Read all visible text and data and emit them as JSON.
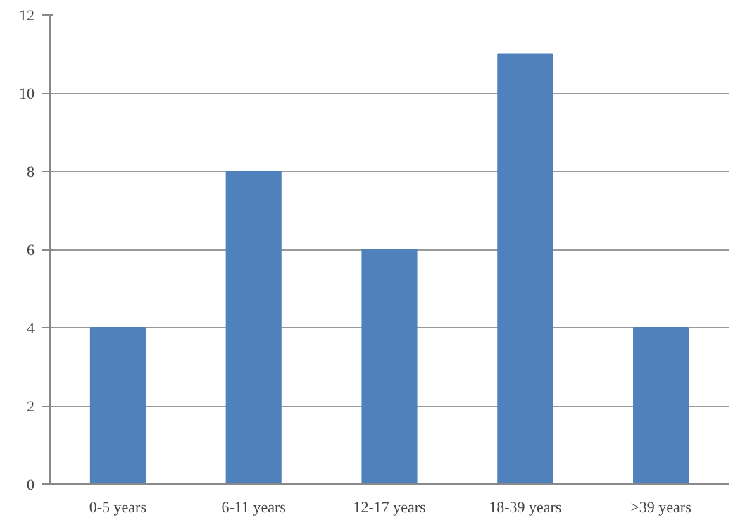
{
  "chart_data": {
    "type": "bar",
    "categories": [
      "0-5 years",
      "6-11 years",
      "12-17 years",
      "18-39 years",
      ">39 years"
    ],
    "values": [
      4,
      8,
      6,
      11,
      4
    ],
    "color": "#4f81bd",
    "ylim": [
      0,
      12
    ],
    "yticks": [
      0,
      2,
      4,
      6,
      8,
      10,
      12
    ],
    "grid": "y"
  }
}
